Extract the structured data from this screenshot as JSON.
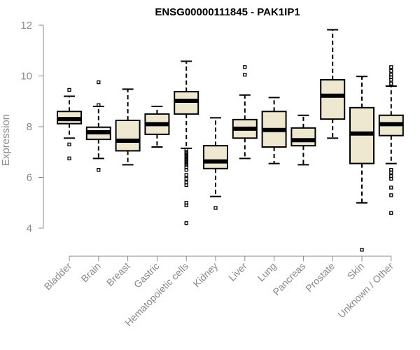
{
  "chart_data": {
    "type": "boxplot",
    "title": "ENSG00000111845 - PAK1IP1",
    "ylabel": "Expression",
    "xlabel": "",
    "ylim": [
      3.0,
      12.0
    ],
    "yticks": [
      4,
      6,
      8,
      10,
      12
    ],
    "box_fill": "#efe8d1",
    "stroke_color": "#000000",
    "axis_color": "#888888",
    "categories": [
      "Bladder",
      "Brain",
      "Breast",
      "Gastric",
      "Hematopoietic cells",
      "Kidney",
      "Liver",
      "Lung",
      "Pancreas",
      "Prostate",
      "Skin",
      "Unknown / Other"
    ],
    "boxes": [
      {
        "whisker_low": 7.55,
        "q1": 8.12,
        "median": 8.3,
        "q3": 8.6,
        "whisker_high": 9.2,
        "outliers": [
          9.45,
          7.3,
          6.75
        ]
      },
      {
        "whisker_low": 6.75,
        "q1": 7.5,
        "median": 7.78,
        "q3": 7.98,
        "whisker_high": 8.8,
        "outliers": [
          9.75,
          8.85,
          6.3
        ]
      },
      {
        "whisker_low": 6.5,
        "q1": 7.05,
        "median": 7.45,
        "q3": 8.25,
        "whisker_high": 9.48,
        "outliers": []
      },
      {
        "whisker_low": 7.2,
        "q1": 7.7,
        "median": 8.1,
        "q3": 8.5,
        "whisker_high": 8.8,
        "outliers": []
      },
      {
        "whisker_low": 7.15,
        "q1": 8.5,
        "median": 9.02,
        "q3": 9.38,
        "whisker_high": 10.58,
        "outliers": [
          7.1,
          7.0,
          6.95,
          6.9,
          6.85,
          6.8,
          6.75,
          6.7,
          6.65,
          6.6,
          6.55,
          6.5,
          6.4,
          6.3,
          6.1,
          5.95,
          5.8,
          5.7,
          5.0,
          4.9,
          4.2
        ]
      },
      {
        "whisker_low": 5.25,
        "q1": 6.35,
        "median": 6.63,
        "q3": 7.25,
        "whisker_high": 8.35,
        "outliers": [
          4.8
        ]
      },
      {
        "whisker_low": 6.75,
        "q1": 7.55,
        "median": 7.92,
        "q3": 8.28,
        "whisker_high": 9.25,
        "outliers": [
          10.35,
          10.05
        ]
      },
      {
        "whisker_low": 6.55,
        "q1": 7.2,
        "median": 7.87,
        "q3": 8.6,
        "whisker_high": 9.15,
        "outliers": []
      },
      {
        "whisker_low": 6.5,
        "q1": 7.25,
        "median": 7.47,
        "q3": 7.95,
        "whisker_high": 8.45,
        "outliers": []
      },
      {
        "whisker_low": 7.55,
        "q1": 8.3,
        "median": 9.22,
        "q3": 9.85,
        "whisker_high": 11.82,
        "outliers": []
      },
      {
        "whisker_low": 5.0,
        "q1": 6.55,
        "median": 7.73,
        "q3": 8.75,
        "whisker_high": 9.98,
        "outliers": [
          3.15
        ]
      },
      {
        "whisker_low": 6.55,
        "q1": 7.65,
        "median": 8.1,
        "q3": 8.45,
        "whisker_high": 9.6,
        "outliers": [
          10.35,
          10.2,
          10.05,
          9.95,
          9.85,
          9.7,
          6.3,
          6.2,
          6.05,
          5.95,
          5.6,
          5.3,
          4.6
        ]
      }
    ]
  }
}
